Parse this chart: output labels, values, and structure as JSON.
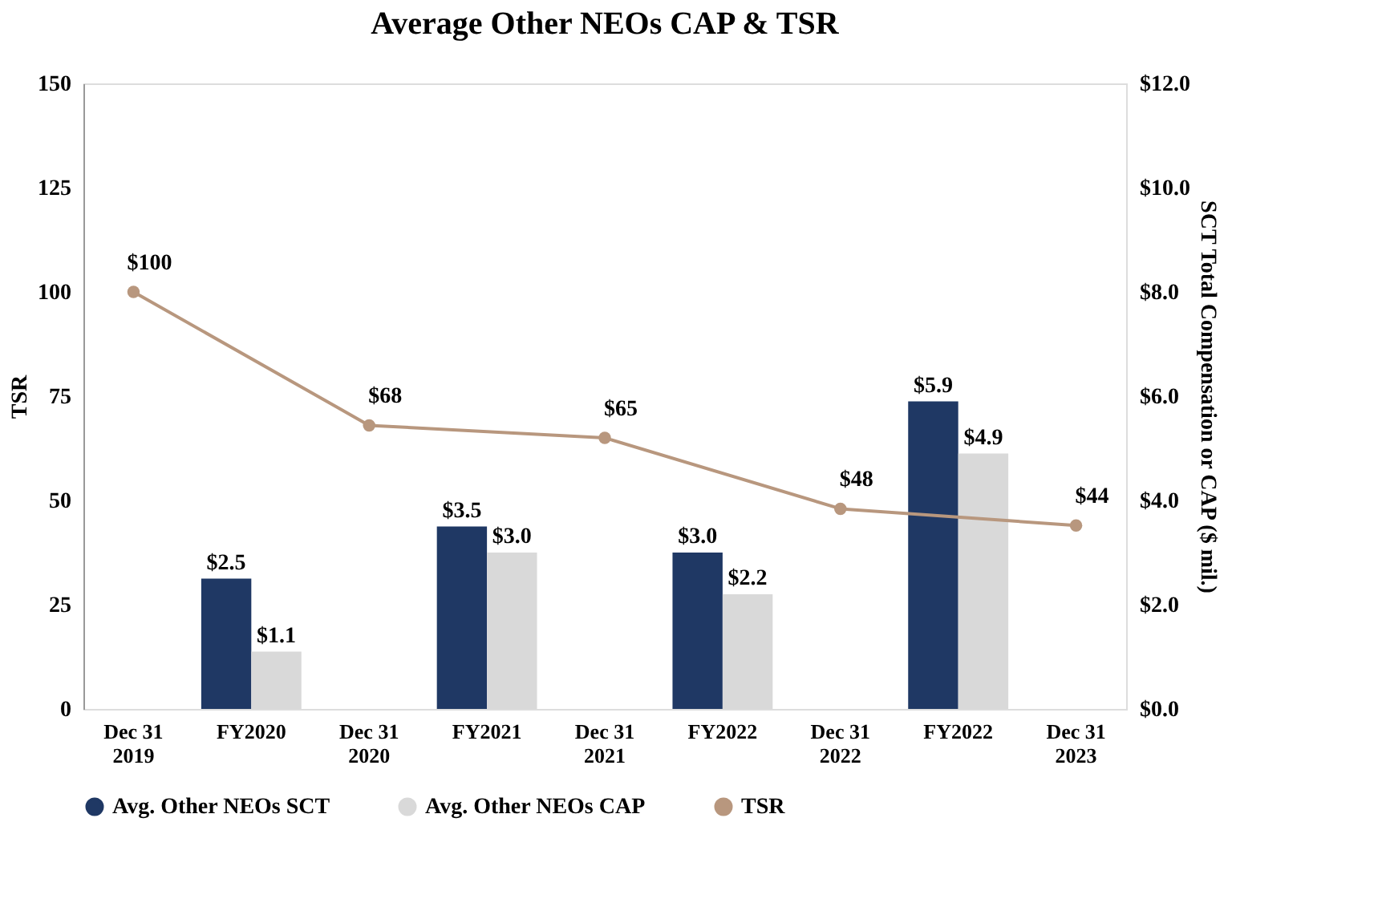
{
  "chart_data": {
    "type": "bar",
    "title": "Average Other NEOs CAP & TSR",
    "categories": [
      "Dec 31\n2019",
      "FY2020",
      "Dec 31\n2020",
      "FY2021",
      "Dec 31\n2021",
      "FY2022",
      "Dec 31\n2022",
      "FY2022",
      "Dec 31\n2023"
    ],
    "ylabel": "TSR",
    "y2label": "SCT Total Compensation or CAP ($ mil.)",
    "ylim": [
      0,
      150
    ],
    "yticks": [
      0,
      25,
      50,
      75,
      100,
      125,
      150
    ],
    "y2lim": [
      0,
      12
    ],
    "y2ticks": [
      {
        "value": 0,
        "label": "$0.0"
      },
      {
        "value": 2,
        "label": "$2.0"
      },
      {
        "value": 4,
        "label": "$4.0"
      },
      {
        "value": 6,
        "label": "$6.0"
      },
      {
        "value": 8,
        "label": "$8.0"
      },
      {
        "value": 10,
        "label": "$10.0"
      },
      {
        "value": 12,
        "label": "$12.0"
      }
    ],
    "series": [
      {
        "name": "Avg. Other NEOs SCT",
        "color": "#1f3864",
        "axis": "y2",
        "values": [
          null,
          2.5,
          null,
          3.5,
          null,
          3.0,
          null,
          5.9,
          null
        ],
        "value_labels": [
          null,
          "$2.5",
          null,
          "$3.5",
          null,
          "$3.0",
          null,
          "$5.9",
          null
        ]
      },
      {
        "name": "Avg. Other NEOs CAP",
        "color": "#d9d9d9",
        "axis": "y2",
        "values": [
          null,
          1.1,
          null,
          3.0,
          null,
          2.2,
          null,
          4.9,
          null
        ],
        "value_labels": [
          null,
          "$1.1",
          null,
          "$3.0",
          null,
          "$2.2",
          null,
          "$4.9",
          null
        ]
      },
      {
        "name": "TSR",
        "type": "line",
        "color": "#b8977e",
        "axis": "y",
        "marker": "circle",
        "values": [
          100,
          null,
          68,
          null,
          65,
          null,
          48,
          null,
          44
        ],
        "value_labels": [
          "$100",
          null,
          "$68",
          null,
          "$65",
          null,
          "$48",
          null,
          "$44"
        ]
      }
    ],
    "legend": "bottom",
    "grid": false
  }
}
